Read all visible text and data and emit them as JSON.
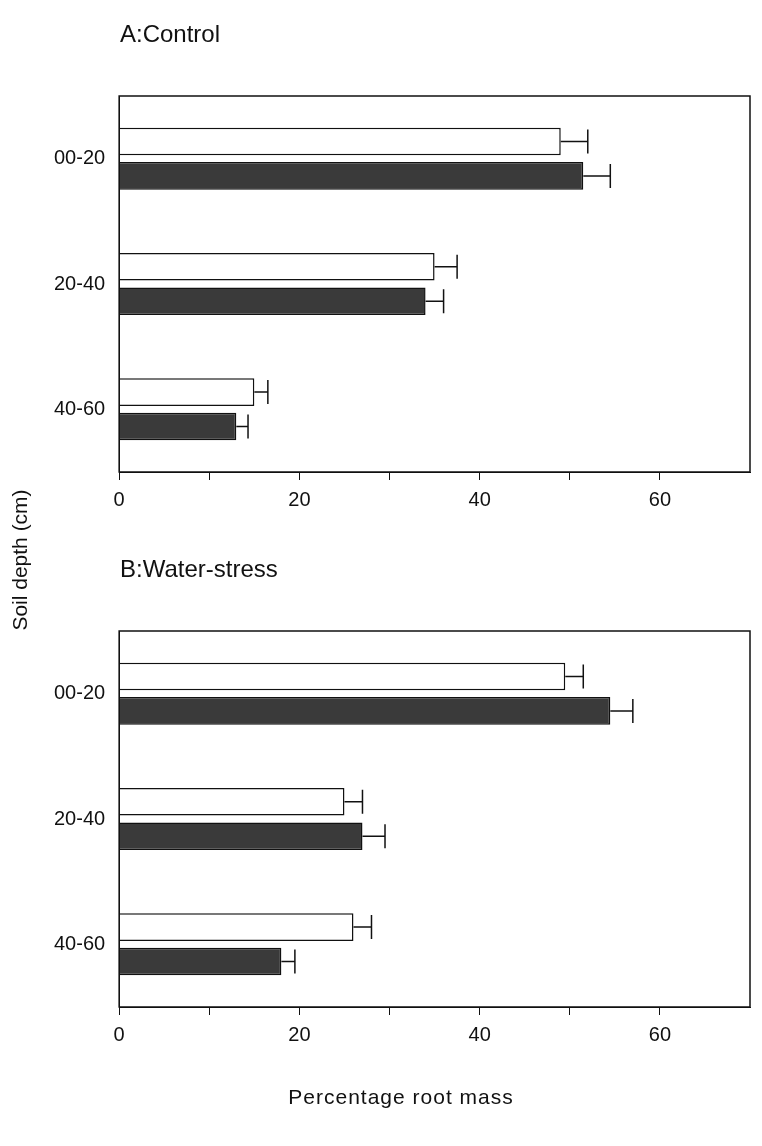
{
  "chart_data": [
    {
      "type": "bar",
      "orientation": "horizontal",
      "title": "A:Control",
      "ylabel": "Soil depth (cm)",
      "categories": [
        "00-20",
        "20-40",
        "40-60"
      ],
      "series": [
        {
          "color": "#ffffff",
          "values": [
            49,
            35,
            15
          ],
          "errors": [
            3,
            2.5,
            1.5
          ]
        },
        {
          "color": "#3a3a3a",
          "values": [
            51.5,
            34,
            13
          ],
          "errors": [
            3,
            2,
            1.3
          ]
        }
      ],
      "xlim": [
        0,
        70
      ],
      "xticks": [
        0,
        {
          "value": 10,
          "label": null
        },
        20,
        {
          "value": 30,
          "label": null
        },
        40,
        {
          "value": 50,
          "label": null
        },
        60
      ],
      "grid": false,
      "legend": false
    },
    {
      "type": "bar",
      "orientation": "horizontal",
      "title": "B:Water-stress",
      "xlabel": "Percentage root mass",
      "categories": [
        "00-20",
        "20-40",
        "40-60"
      ],
      "series": [
        {
          "color": "#ffffff",
          "values": [
            49.5,
            25,
            26
          ],
          "errors": [
            2,
            2,
            2
          ]
        },
        {
          "color": "#3a3a3a",
          "values": [
            54.5,
            27,
            18
          ],
          "errors": [
            2.5,
            2.5,
            1.5
          ]
        }
      ],
      "xlim": [
        0,
        70
      ],
      "xticks": [
        0,
        {
          "value": 10,
          "label": null
        },
        20,
        {
          "value": 30,
          "label": null
        },
        40,
        {
          "value": 50,
          "label": null
        },
        60
      ],
      "grid": false,
      "legend": false
    }
  ]
}
